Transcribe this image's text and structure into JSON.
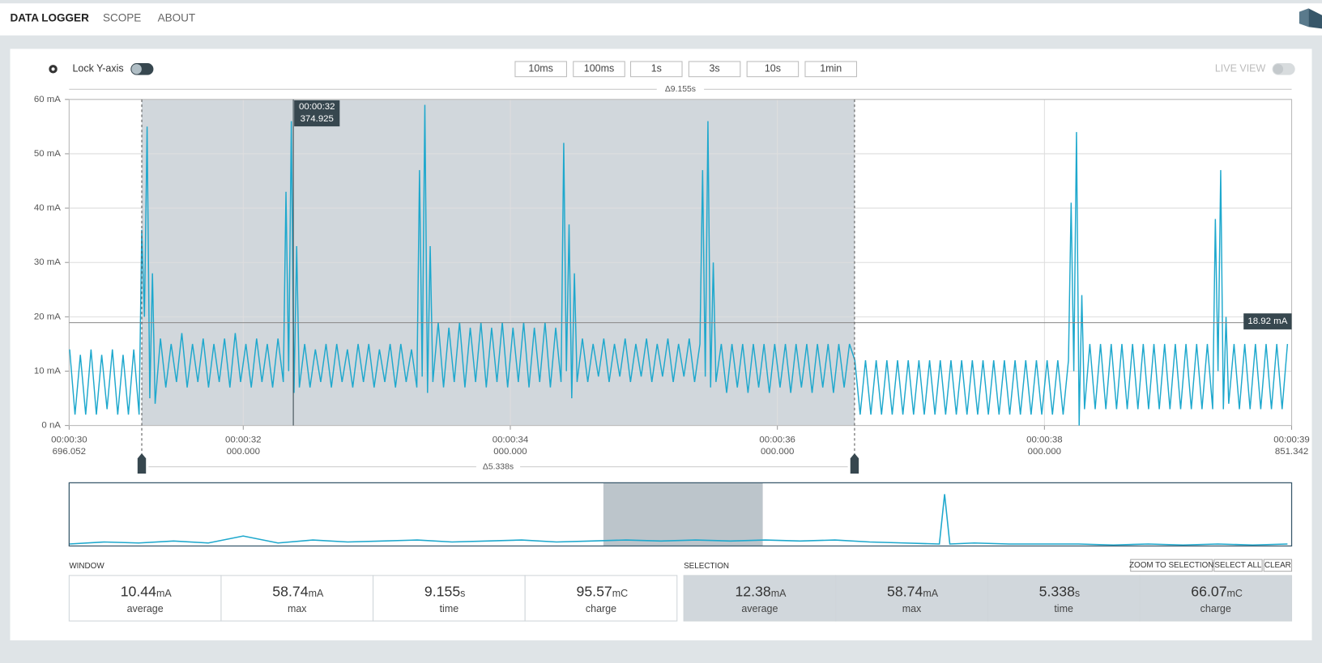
{
  "nav": {
    "tabs": [
      "DATA LOGGER",
      "SCOPE",
      "ABOUT"
    ]
  },
  "toolbar": {
    "lock_label": "Lock Y-axis",
    "windows": [
      "10ms",
      "100ms",
      "1s",
      "3s",
      "10s",
      "1min"
    ],
    "live_view": "LIVE VIEW"
  },
  "chart_data": {
    "type": "line",
    "color": "#1ea8cd",
    "grid": true,
    "window_delta": "Δ9.155s",
    "xlim": [
      30.696052,
      39.851342
    ],
    "ylim": [
      0,
      60
    ],
    "yticks": [
      {
        "value": 0,
        "label": "0 nA"
      },
      {
        "value": 10,
        "label": "10 mA"
      },
      {
        "value": 20,
        "label": "20 mA"
      },
      {
        "value": 30,
        "label": "30 mA"
      },
      {
        "value": 40,
        "label": "40 mA"
      },
      {
        "value": 50,
        "label": "50 mA"
      },
      {
        "value": 60,
        "label": "60 mA"
      }
    ],
    "xticks": [
      {
        "value": 30.696052,
        "label": "00:00:30",
        "sublabel": "696.052"
      },
      {
        "value": 32,
        "label": "00:00:32",
        "sublabel": "000.000"
      },
      {
        "value": 34,
        "label": "00:00:34",
        "sublabel": "000.000"
      },
      {
        "value": 36,
        "label": "00:00:36",
        "sublabel": "000.000"
      },
      {
        "value": 38,
        "label": "00:00:38",
        "sublabel": "000.000"
      },
      {
        "value": 39.851342,
        "label": "00:00:39",
        "sublabel": "851.342"
      }
    ],
    "x": [
      30.7,
      30.74,
      30.78,
      30.82,
      30.86,
      30.9,
      30.94,
      30.98,
      31.02,
      31.06,
      31.1,
      31.14,
      31.18,
      31.22,
      31.24,
      31.26,
      31.28,
      31.3,
      31.32,
      31.34,
      31.38,
      31.42,
      31.46,
      31.5,
      31.54,
      31.58,
      31.62,
      31.66,
      31.7,
      31.74,
      31.78,
      31.82,
      31.86,
      31.9,
      31.94,
      31.98,
      32.02,
      32.06,
      32.1,
      32.14,
      32.18,
      32.22,
      32.26,
      32.3,
      32.32,
      32.34,
      32.36,
      32.38,
      32.4,
      32.42,
      32.46,
      32.5,
      32.54,
      32.58,
      32.62,
      32.66,
      32.7,
      32.74,
      32.78,
      32.82,
      32.86,
      32.9,
      32.94,
      32.98,
      33.02,
      33.06,
      33.1,
      33.14,
      33.18,
      33.22,
      33.26,
      33.3,
      33.32,
      33.34,
      33.36,
      33.38,
      33.4,
      33.42,
      33.46,
      33.5,
      33.54,
      33.58,
      33.62,
      33.66,
      33.7,
      33.74,
      33.78,
      33.82,
      33.86,
      33.9,
      33.94,
      33.98,
      34.02,
      34.06,
      34.1,
      34.14,
      34.18,
      34.22,
      34.26,
      34.3,
      34.34,
      34.38,
      34.4,
      34.42,
      34.44,
      34.46,
      34.48,
      34.5,
      34.54,
      34.58,
      34.62,
      34.66,
      34.7,
      34.74,
      34.78,
      34.82,
      34.86,
      34.9,
      34.94,
      34.98,
      35.02,
      35.06,
      35.1,
      35.14,
      35.18,
      35.22,
      35.26,
      35.3,
      35.34,
      35.38,
      35.42,
      35.44,
      35.46,
      35.48,
      35.5,
      35.52,
      35.54,
      35.58,
      35.62,
      35.66,
      35.7,
      35.74,
      35.78,
      35.82,
      35.86,
      35.9,
      35.94,
      35.98,
      36.02,
      36.06,
      36.1,
      36.14,
      36.18,
      36.22,
      36.26,
      36.3,
      36.34,
      36.38,
      36.42,
      36.46,
      36.5,
      36.54,
      36.58,
      36.62,
      36.66,
      36.7,
      36.74,
      36.78,
      36.82,
      36.86,
      36.9,
      36.94,
      36.98,
      37.02,
      37.06,
      37.1,
      37.14,
      37.18,
      37.22,
      37.26,
      37.3,
      37.34,
      37.38,
      37.42,
      37.46,
      37.5,
      37.54,
      37.58,
      37.62,
      37.66,
      37.7,
      37.74,
      37.78,
      37.82,
      37.86,
      37.9,
      37.94,
      37.98,
      38.02,
      38.06,
      38.1,
      38.14,
      38.18,
      38.2,
      38.22,
      38.24,
      38.26,
      38.28,
      38.3,
      38.34,
      38.38,
      38.42,
      38.46,
      38.5,
      38.54,
      38.58,
      38.62,
      38.66,
      38.7,
      38.74,
      38.78,
      38.82,
      38.86,
      38.9,
      38.94,
      38.98,
      39.02,
      39.06,
      39.1,
      39.14,
      39.18,
      39.22,
      39.26,
      39.28,
      39.3,
      39.32,
      39.34,
      39.36,
      39.38,
      39.42,
      39.46,
      39.5,
      39.54,
      39.58,
      39.62,
      39.66,
      39.7,
      39.74,
      39.78,
      39.82
    ],
    "values": [
      14,
      2,
      13,
      2,
      14,
      2,
      13,
      3,
      14,
      2,
      13,
      2,
      14,
      2,
      36,
      20,
      55,
      5,
      28,
      4,
      16,
      7,
      15,
      8,
      17,
      7,
      15,
      8,
      16,
      7,
      15,
      8,
      16,
      7,
      17,
      8,
      15,
      7,
      16,
      8,
      15,
      7,
      16,
      8,
      43,
      10,
      56,
      6,
      33,
      7,
      15,
      7,
      14,
      8,
      15,
      7,
      15,
      8,
      14,
      7,
      15,
      8,
      15,
      7,
      14,
      8,
      15,
      7,
      15,
      8,
      14,
      7,
      47,
      9,
      59,
      6,
      33,
      8,
      19,
      7,
      18,
      8,
      19,
      7,
      18,
      8,
      19,
      7,
      18,
      8,
      19,
      7,
      18,
      8,
      19,
      7,
      18,
      8,
      19,
      7,
      18,
      8,
      52,
      10,
      37,
      5,
      28,
      8,
      16,
      8,
      15,
      9,
      16,
      8,
      15,
      9,
      16,
      8,
      15,
      9,
      16,
      8,
      15,
      9,
      16,
      8,
      15,
      9,
      16,
      8,
      15,
      47,
      9,
      56,
      7,
      30,
      8,
      15,
      6,
      15,
      7,
      15,
      6,
      15,
      7,
      15,
      6,
      15,
      7,
      15,
      6,
      15,
      7,
      15,
      6,
      15,
      7,
      15,
      6,
      15,
      7,
      15,
      12,
      2,
      12,
      2,
      12,
      2,
      12,
      2,
      12,
      2,
      12,
      2,
      12,
      2,
      12,
      2,
      12,
      2,
      12,
      2,
      12,
      2,
      12,
      2,
      12,
      2,
      12,
      2,
      12,
      2,
      12,
      2,
      12,
      2,
      12,
      2,
      12,
      2,
      12,
      2,
      12,
      41,
      10,
      54,
      0,
      24,
      3,
      15,
      3,
      15,
      3,
      15,
      3,
      15,
      3,
      15,
      3,
      15,
      3,
      15,
      3,
      15,
      3,
      15,
      3,
      15,
      3,
      15,
      3,
      15,
      3,
      38,
      10,
      47,
      3,
      20,
      4,
      15,
      3,
      15,
      3,
      15,
      3,
      15,
      3,
      15,
      3,
      15
    ],
    "hover": {
      "value": 32.374925,
      "label": "00:00:32",
      "sublabel": "374.925"
    },
    "level": {
      "value": 18.92,
      "label": "18.92 mA"
    },
    "selection": {
      "range": [
        31.24,
        36.578
      ],
      "label": "Δ5.338s"
    },
    "overview": {
      "xlim": [
        0,
        70.24
      ],
      "ylim": [
        0,
        60
      ],
      "x": [
        0,
        2,
        4,
        6,
        8,
        10,
        12,
        14,
        16,
        18,
        20,
        22,
        24,
        26,
        28,
        30,
        32,
        34,
        36,
        38,
        40,
        42,
        44,
        46,
        48,
        50,
        50.3,
        50.6,
        52,
        54,
        56,
        58,
        60,
        62,
        64,
        66,
        68,
        70
      ],
      "values": [
        2,
        4,
        3,
        5,
        3,
        10,
        3,
        6,
        4,
        5,
        6,
        4,
        5,
        6,
        4,
        5,
        6,
        5,
        6,
        5,
        6,
        5,
        6,
        4,
        3,
        2,
        52,
        2,
        3,
        2,
        2,
        2,
        1,
        2,
        1,
        2,
        1,
        2
      ]
    }
  },
  "window_stats": {
    "title": "WINDOW",
    "items": [
      {
        "value": 10.44,
        "unit": "mA",
        "label": "average"
      },
      {
        "value": 58.74,
        "unit": "mA",
        "label": "max"
      },
      {
        "value": 9.155,
        "unit": "s",
        "label": "time"
      },
      {
        "value": 95.57,
        "unit": "mC",
        "label": "charge"
      }
    ]
  },
  "selection_stats": {
    "title": "SELECTION",
    "buttons": [
      "ZOOM TO SELECTION",
      "SELECT ALL",
      "CLEAR"
    ],
    "items": [
      {
        "value": 12.38,
        "unit": "mA",
        "label": "average"
      },
      {
        "value": 58.74,
        "unit": "mA",
        "label": "max"
      },
      {
        "value": 5.338,
        "unit": "s",
        "label": "time"
      },
      {
        "value": 66.07,
        "unit": "mC",
        "label": "charge"
      }
    ]
  }
}
